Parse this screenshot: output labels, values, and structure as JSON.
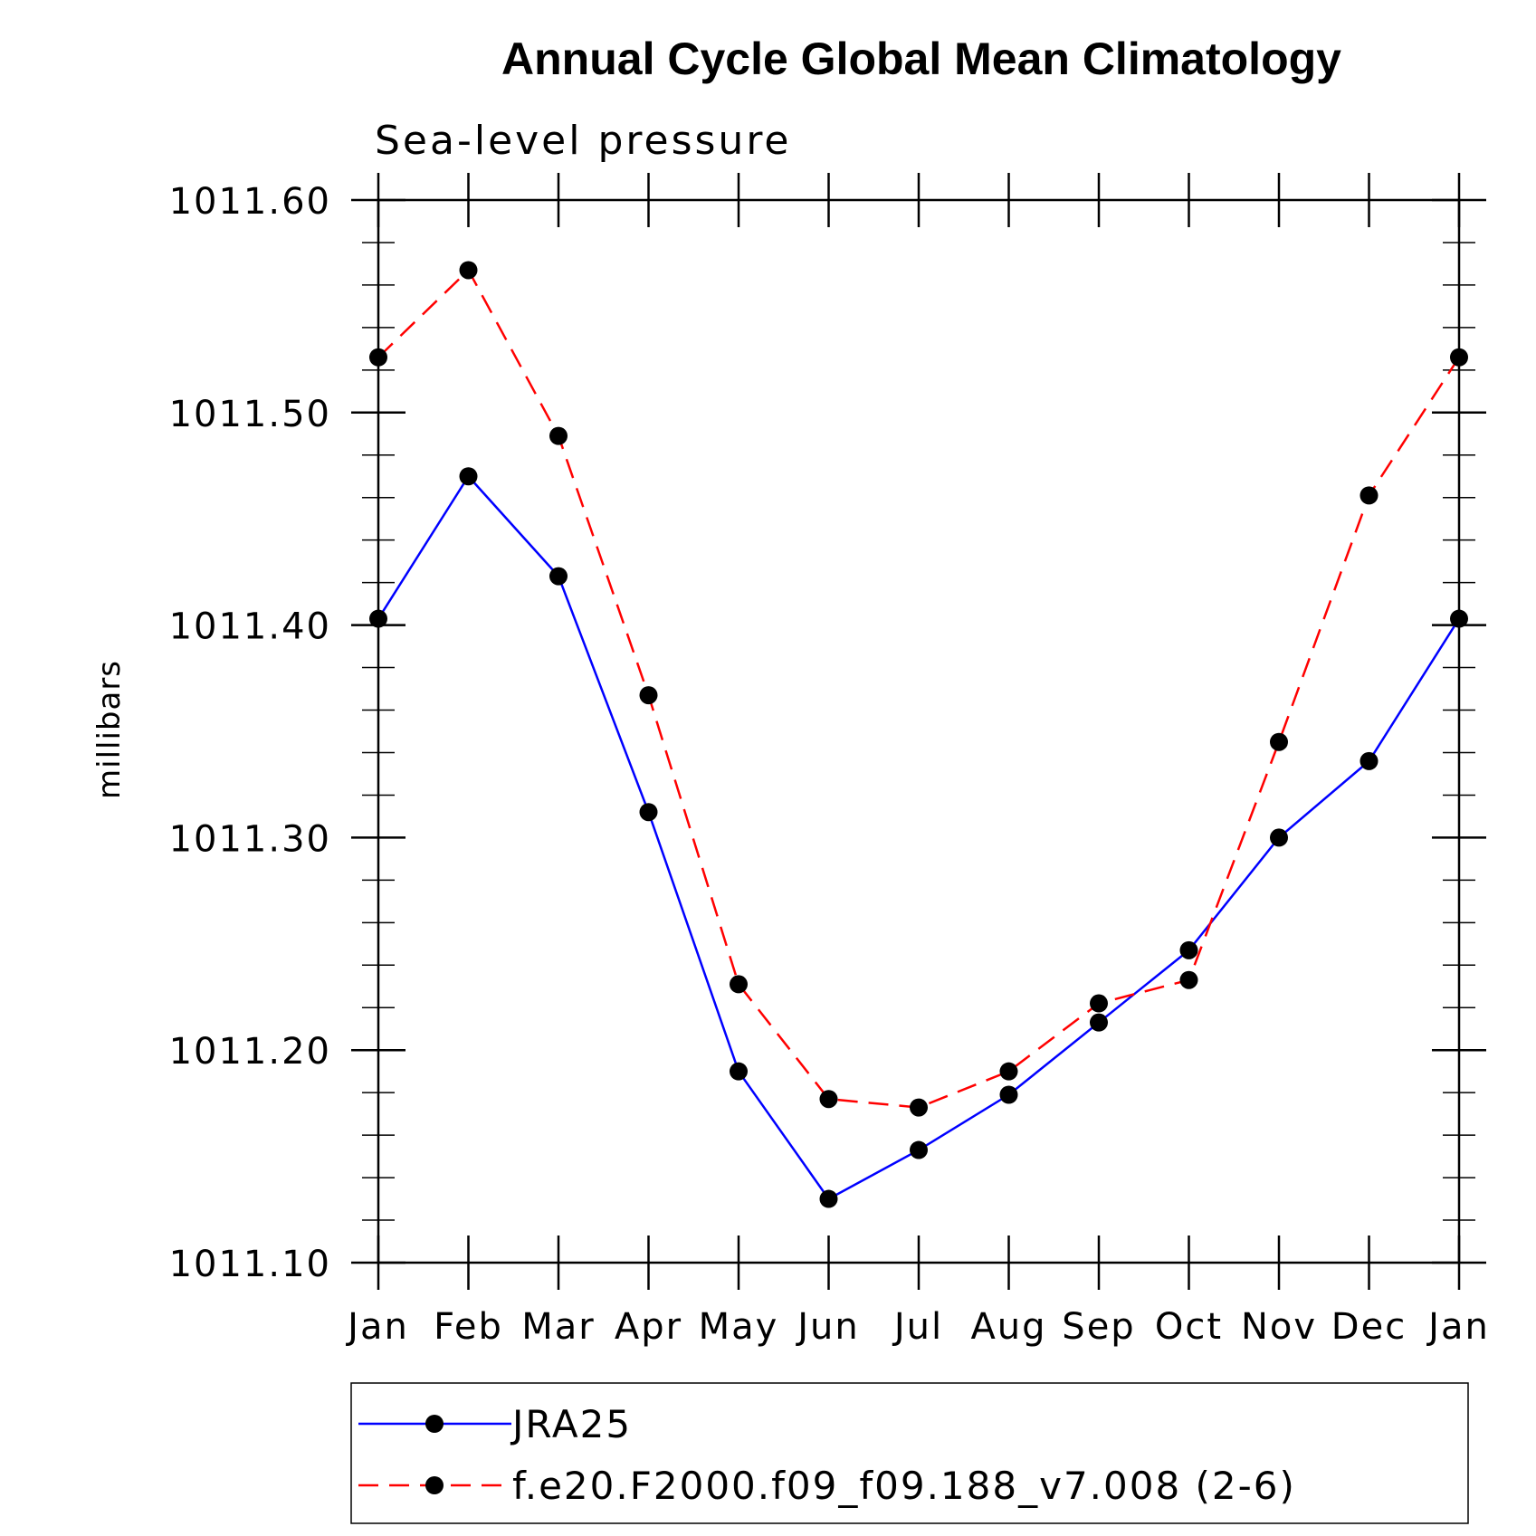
{
  "chart_data": {
    "type": "line",
    "title": "Annual Cycle Global Mean Climatology",
    "subtitle": "Sea-level pressure",
    "xlabel": "",
    "ylabel": "millibars",
    "categories": [
      "Jan",
      "Feb",
      "Mar",
      "Apr",
      "May",
      "Jun",
      "Jul",
      "Aug",
      "Sep",
      "Oct",
      "Nov",
      "Dec",
      "Jan"
    ],
    "ylim": [
      1011.1,
      1011.6
    ],
    "yticks": [
      "1011.10",
      "1011.20",
      "1011.30",
      "1011.40",
      "1011.50",
      "1011.60"
    ],
    "series": [
      {
        "name": "JRA25",
        "color": "#0000ff",
        "dash": "solid",
        "values": [
          1011.403,
          1011.47,
          1011.423,
          1011.312,
          1011.19,
          1011.13,
          1011.153,
          1011.179,
          1011.213,
          1011.247,
          1011.3,
          1011.336,
          1011.403
        ]
      },
      {
        "name": "f.e20.F2000.f09_f09.188_v7.008 (2-6)",
        "color": "#ff0000",
        "dash": "dashed",
        "values": [
          1011.526,
          1011.567,
          1011.489,
          1011.367,
          1011.231,
          1011.177,
          1011.173,
          1011.19,
          1011.222,
          1011.233,
          1011.345,
          1011.461,
          1011.526
        ]
      }
    ],
    "marker": "filled-circle",
    "marker_color": "#000000",
    "legend_position": "bottom"
  }
}
